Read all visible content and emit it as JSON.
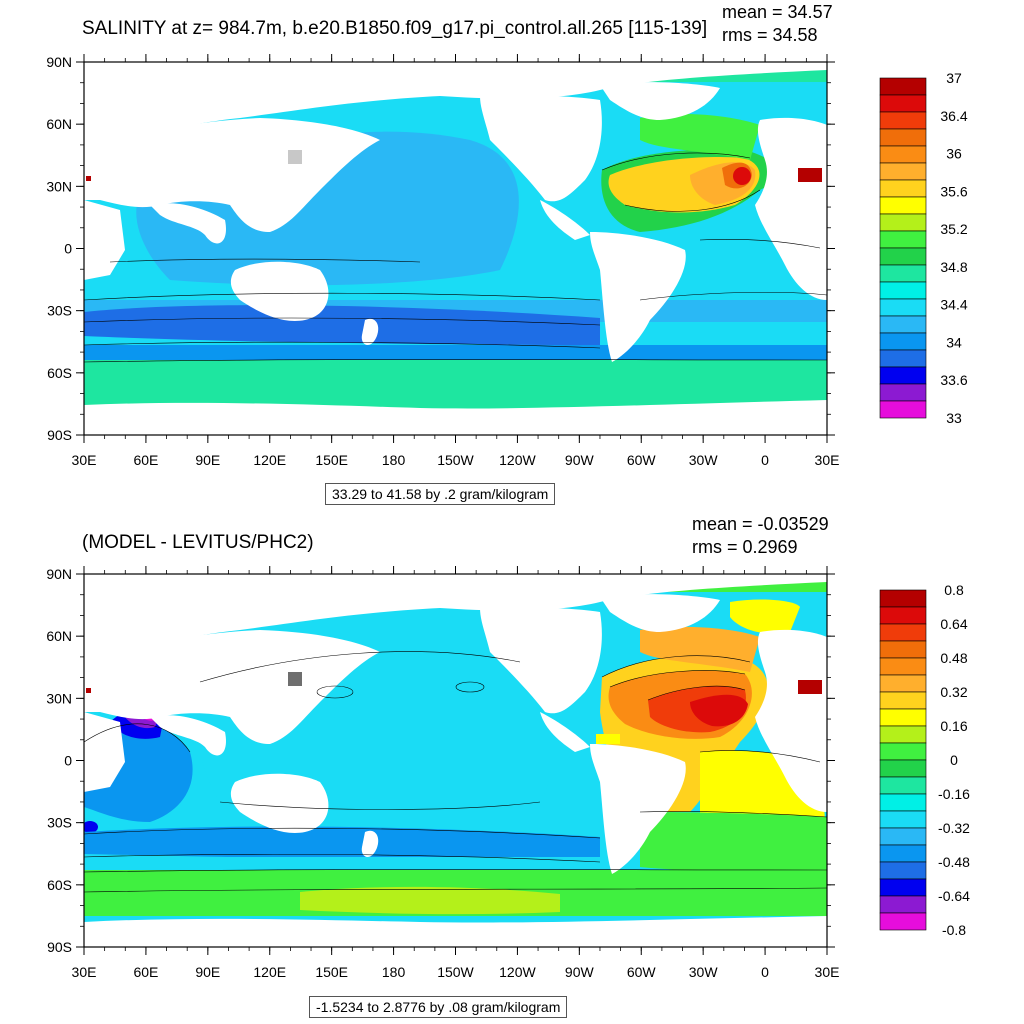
{
  "colors": {
    "land": "#ffffff",
    "frame": "#000000",
    "palette": [
      "#6e6e6e",
      "#c8c8c8",
      "#e60ddc",
      "#8c1ad2",
      "#0000f0",
      "#1e6ee6",
      "#0a96f0",
      "#2ab8f5",
      "#1adcf5",
      "#00f0e6",
      "#1ee6a0",
      "#22d24a",
      "#40f040",
      "#b4f01a",
      "#ffff00",
      "#ffd21e",
      "#ffaf2d",
      "#fa8c14",
      "#f06e0a",
      "#f03c0a",
      "#dc0a0a",
      "#b40000"
    ]
  },
  "top": {
    "title": "SALINITY at z= 984.7m, b.e20.B1850.f09_g17.pi_control.all.265 [115-139]",
    "mean": "mean = 34.57",
    "rms": "rms = 34.58",
    "lat_ticks": [
      "90N",
      "60N",
      "30N",
      "0",
      "30S",
      "60S",
      "90S"
    ],
    "lon_ticks": [
      "30E",
      "60E",
      "90E",
      "120E",
      "150E",
      "180",
      "150W",
      "120W",
      "90W",
      "60W",
      "30W",
      "0",
      "30E"
    ],
    "colorbar_labels": [
      "37",
      "36.4",
      "36",
      "35.6",
      "35.2",
      "34.8",
      "34.4",
      "34",
      "33.6",
      "33"
    ],
    "range_text": "33.29 to 41.58 by .2 gram/kilogram"
  },
  "bottom": {
    "title": "(MODEL - LEVITUS/PHC2)",
    "mean": "mean = -0.03529",
    "rms": "rms = 0.2969",
    "lat_ticks": [
      "90N",
      "60N",
      "30N",
      "0",
      "30S",
      "60S",
      "90S"
    ],
    "lon_ticks": [
      "30E",
      "60E",
      "90E",
      "120E",
      "150E",
      "180",
      "150W",
      "120W",
      "90W",
      "60W",
      "30W",
      "0",
      "30E"
    ],
    "colorbar_labels": [
      "0.8",
      "0.64",
      "0.48",
      "0.32",
      "0.16",
      "0",
      "-0.16",
      "-0.32",
      "-0.48",
      "-0.64",
      "-0.8"
    ],
    "range_text": "-1.5234 to 2.8776 by .08 gram/kilogram"
  }
}
